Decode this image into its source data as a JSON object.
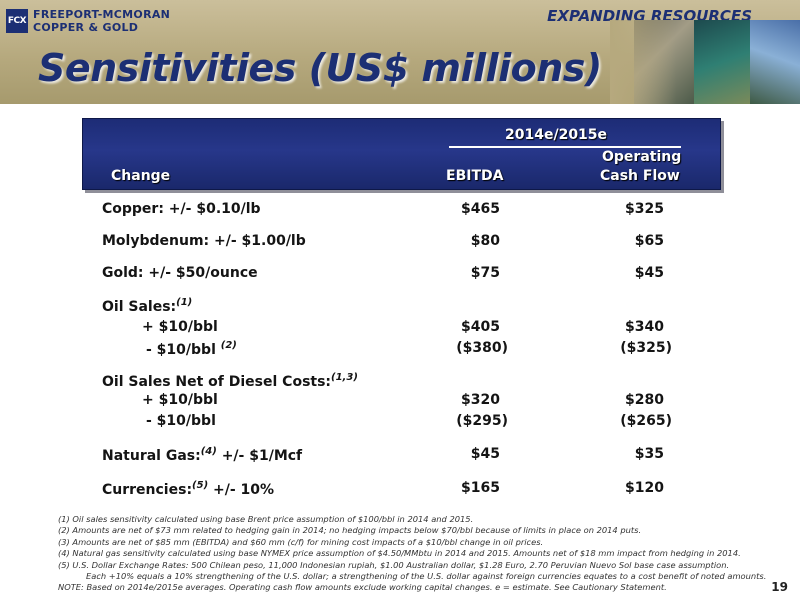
{
  "header": {
    "logo_mark": "FCX",
    "company_line1": "FREEPORT-MCMORAN",
    "company_line2": "COPPER & GOLD",
    "tagline": "EXPANDING RESOURCES",
    "title": "Sensitivities (US$ millions)"
  },
  "table": {
    "period": "2014e/2015e",
    "col_change": "Change",
    "col_ebitda": "EBITDA",
    "col_ocf_line1": "Operating",
    "col_ocf_line2": "Cash Flow",
    "rows": {
      "copper": {
        "label": "Copper: +/- $0.10/lb",
        "ebitda": "$465",
        "ocf": "$325"
      },
      "molybdenum": {
        "label": "Molybdenum: +/- $1.00/lb",
        "ebitda": "$80",
        "ocf": "$65"
      },
      "gold": {
        "label": "Gold: +/- $50/ounce",
        "ebitda": "$75",
        "ocf": "$45"
      },
      "oil_sales": {
        "label": "Oil Sales:",
        "note": "(1)"
      },
      "oil_plus": {
        "label": "+ $10/bbl",
        "ebitda": "$405",
        "ocf": "$340"
      },
      "oil_minus": {
        "label": "- $10/bbl",
        "note": "(2)",
        "ebitda": "($380)",
        "ocf": "($325)"
      },
      "oil_net": {
        "label": "Oil Sales Net of Diesel Costs:",
        "note": "(1,3)"
      },
      "net_plus": {
        "label": "+ $10/bbl",
        "ebitda": "$320",
        "ocf": "$280"
      },
      "net_minus": {
        "label": "- $10/bbl",
        "ebitda": "($295)",
        "ocf": "($265)"
      },
      "gas": {
        "label_a": "Natural Gas:",
        "note": "(4)",
        "label_b": " +/- $1/Mcf",
        "ebitda": "$45",
        "ocf": "$35"
      },
      "currencies": {
        "label_a": "Currencies:",
        "note": "(5)",
        "label_b": " +/- 10%",
        "ebitda": "$165",
        "ocf": "$120"
      }
    }
  },
  "footnotes": [
    "(1) Oil sales sensitivity calculated using base Brent price assumption of $100/bbl in 2014 and 2015.",
    "(2) Amounts are net of $73 mm related to hedging gain in 2014; no hedging impacts below $70/bbl because of limits in place on 2014 puts.",
    "(3) Amounts are net of $85 mm (EBITDA) and $60 mm (c/f) for mining cost impacts of a $10/bbl change in oil prices.",
    "(4) Natural gas sensitivity calculated using base NYMEX price assumption of $4.50/MMbtu in 2014 and 2015. Amounts net of $18 mm impact from hedging in 2014.",
    "(5) U.S. Dollar Exchange Rates: 500 Chilean peso, 11,000 Indonesian rupiah, $1.00 Australian dollar, $1.28 Euro, 2.70 Peruvian Nuevo Sol base case assumption.",
    "Each +10% equals a 10% strengthening of the U.S. dollar; a strengthening of the U.S. dollar against foreign currencies equates to a cost benefit of noted amounts.",
    "NOTE: Based on 2014e/2015e averages. Operating cash flow amounts exclude working capital changes. e = estimate. See Cautionary Statement."
  ],
  "page_number": "19",
  "colors": {
    "brand_navy": "#1c2f74",
    "header_tan": "#b6a97e"
  }
}
